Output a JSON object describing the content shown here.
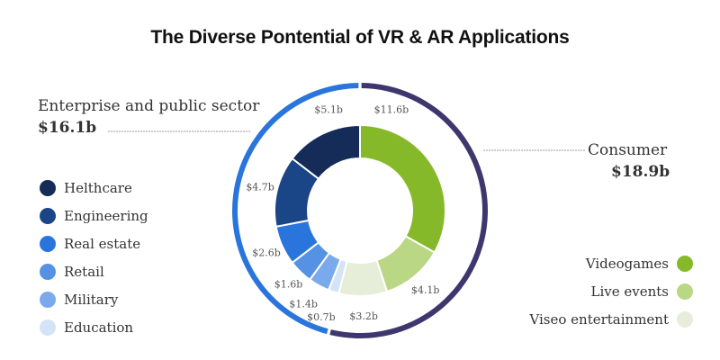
{
  "chart_data": {
    "type": "pie",
    "title": "The Diverse Pontential of VR & AR Applications",
    "unit_prefix": "$",
    "unit_suffix": "b",
    "groups": [
      {
        "name": "Consumer",
        "total_label": "$18.9b",
        "total": 18.9,
        "color": "#3d376e",
        "legend_position": "bottom-right",
        "segments": [
          {
            "name": "Videogames",
            "value": 11.6,
            "label": "$11.6b",
            "color": "#86b92a"
          },
          {
            "name": "Live events",
            "value": 4.1,
            "label": "$4.1b",
            "color": "#b9d784"
          },
          {
            "name": "Viseo entertainment",
            "value": 3.2,
            "label": "$3.2b",
            "color": "#e6eed9"
          }
        ]
      },
      {
        "name": "Enterprise and public sector",
        "total_label": "$16.1b",
        "total": 16.1,
        "color": "#2a75dc",
        "legend_position": "left",
        "segments": [
          {
            "name": "Education",
            "value": 0.7,
            "label": "$0.7b",
            "color": "#d5e3f7"
          },
          {
            "name": "Military",
            "value": 1.4,
            "label": "$1.4b",
            "color": "#7aaaec"
          },
          {
            "name": "Retail",
            "value": 1.6,
            "label": "$1.6b",
            "color": "#5592e3"
          },
          {
            "name": "Real estate",
            "value": 2.6,
            "label": "$2.6b",
            "color": "#2a75dc"
          },
          {
            "name": "Engineering",
            "value": 4.7,
            "label": "$4.7b",
            "color": "#1a4586"
          },
          {
            "name": "Helthcare",
            "value": 5.1,
            "label": "$5.1b",
            "color": "#142c57"
          }
        ]
      }
    ],
    "left_legend_order": [
      "Helthcare",
      "Engineering",
      "Real estate",
      "Retail",
      "Military",
      "Education"
    ],
    "right_legend_order": [
      "Videogames",
      "Live events",
      "Viseo entertainment"
    ]
  }
}
